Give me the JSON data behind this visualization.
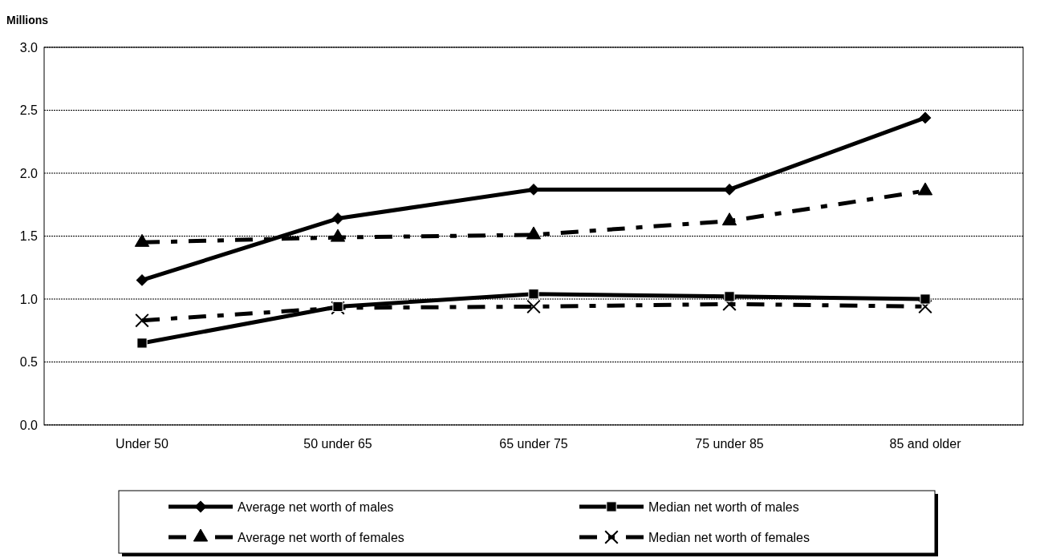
{
  "chart_data": {
    "type": "line",
    "ylabel": "Millions",
    "categories": [
      "Under 50",
      "50 under 65",
      "65 under 75",
      "75 under 85",
      "85 and older"
    ],
    "ylim": [
      0,
      3
    ],
    "yticks": [
      {
        "value": 0,
        "label": "0.0"
      },
      {
        "value": 0.5,
        "label": "0.5"
      },
      {
        "value": 1,
        "label": "1.0"
      },
      {
        "value": 1.5,
        "label": "1.5"
      },
      {
        "value": 2,
        "label": "2.0"
      },
      {
        "value": 2.5,
        "label": "2.5"
      },
      {
        "value": 3,
        "label": "3.0"
      }
    ],
    "grid": "y",
    "legend": "bottom",
    "series": [
      {
        "name": "Average net worth of males",
        "color": "#000000",
        "marker": "diamond",
        "line_style": "solid",
        "values": [
          1.15,
          1.64,
          1.87,
          1.87,
          2.44
        ]
      },
      {
        "name": "Median net worth of males",
        "color": "#000000",
        "marker": "square",
        "line_style": "solid",
        "values": [
          0.65,
          0.94,
          1.04,
          1.02,
          1.0
        ]
      },
      {
        "name": "Average net worth of females",
        "color": "#000000",
        "marker": "triangle",
        "line_style": "dashed",
        "values": [
          1.45,
          1.49,
          1.51,
          1.62,
          1.86
        ]
      },
      {
        "name": "Median net worth of females",
        "color": "#000000",
        "marker": "cross",
        "line_style": "dashed",
        "values": [
          0.83,
          0.93,
          0.94,
          0.96,
          0.94
        ]
      }
    ]
  }
}
